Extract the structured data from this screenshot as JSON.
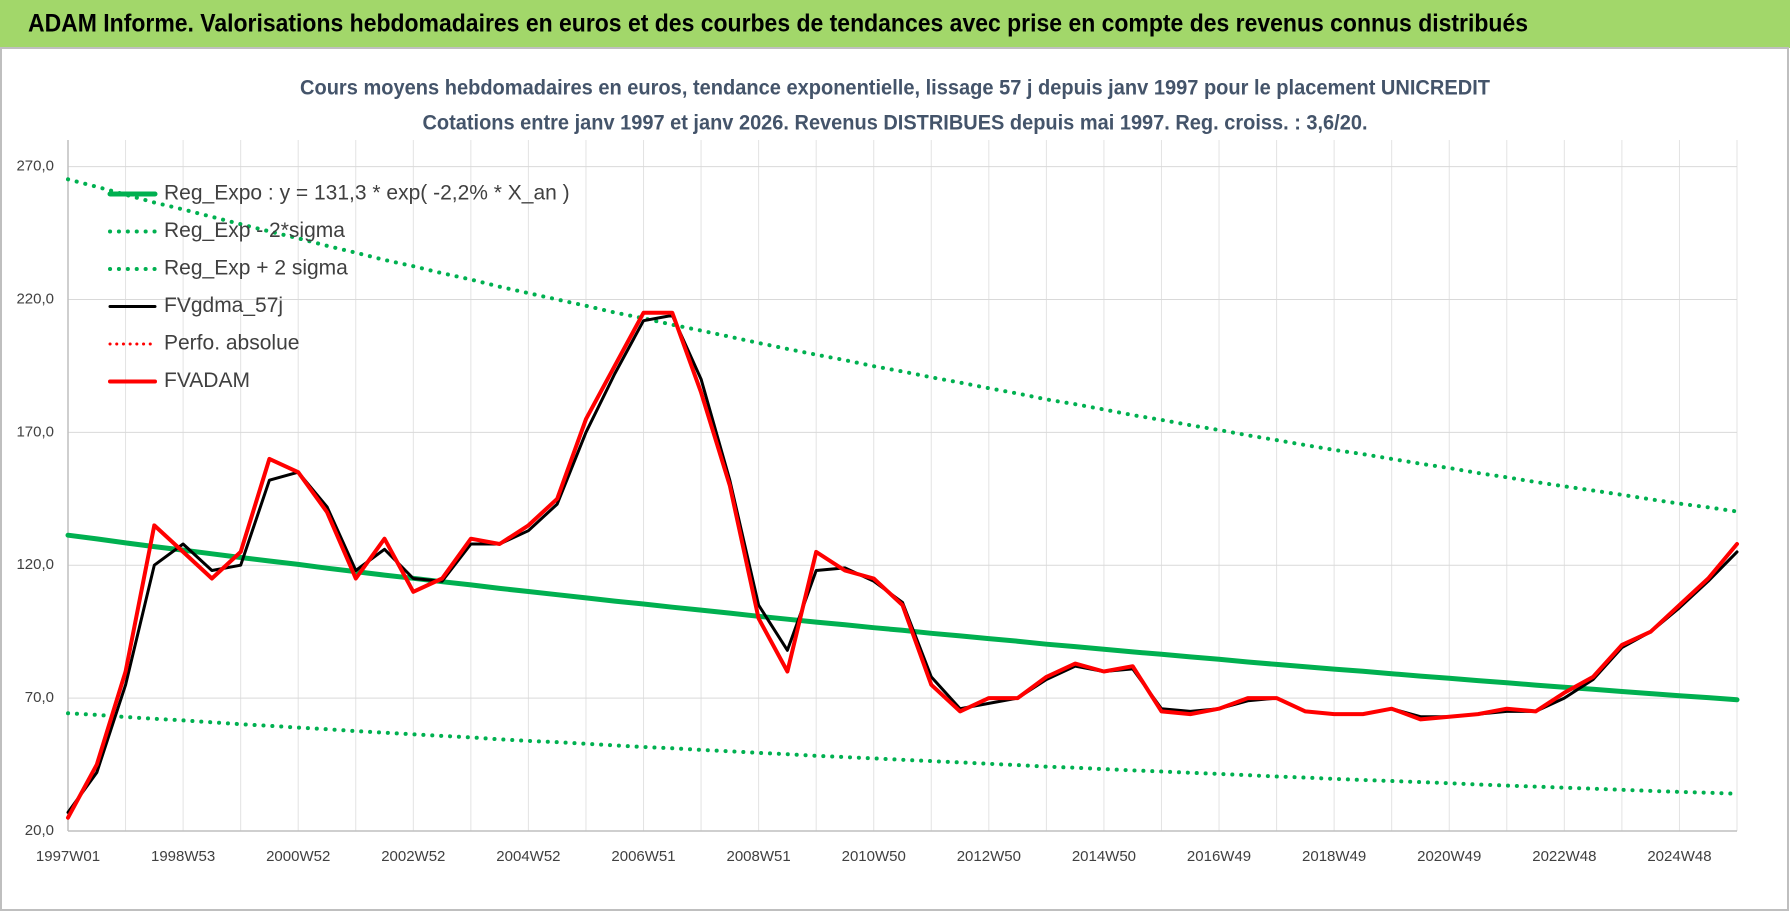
{
  "header": {
    "title": "ADAM Informe. Valorisations hebdomadaires en euros et des courbes de tendances avec prise en compte des revenus connus distribués"
  },
  "chart_data": {
    "type": "line",
    "title": "Cours moyens hebdomadaires en euros, tendance exponentielle, lissage 57 j depuis janv 1997  pour le placement UNICREDIT",
    "subtitle": "Cotations entre janv 1997 et janv 2026. Revenus DISTRIBUES depuis mai 1997. Reg. croiss. : 3,6/20.",
    "categories": [
      "1997W01",
      null,
      null,
      null,
      "1998W53",
      null,
      null,
      null,
      "2000W52",
      null,
      null,
      null,
      "2002W52",
      null,
      null,
      null,
      "2004W52",
      null,
      null,
      null,
      "2006W51",
      null,
      null,
      null,
      "2008W51",
      null,
      null,
      null,
      "2010W50",
      null,
      null,
      null,
      "2012W50",
      null,
      null,
      null,
      "2014W50",
      null,
      null,
      null,
      "2016W49",
      null,
      null,
      null,
      "2018W49",
      null,
      null,
      null,
      "2020W49",
      null,
      null,
      null,
      "2022W48",
      null,
      null,
      null,
      "2024W48",
      null,
      null
    ],
    "ylim": [
      20,
      280
    ],
    "yticks": [
      {
        "value": 20,
        "label": "20,0"
      },
      {
        "value": 70,
        "label": "70,0"
      },
      {
        "value": 120,
        "label": "120,0"
      },
      {
        "value": 170,
        "label": "170,0"
      },
      {
        "value": 220,
        "label": "220,0"
      },
      {
        "value": 270,
        "label": "270,0"
      }
    ],
    "grid": true,
    "legend": "top-left",
    "series": [
      {
        "name": "Reg_Expo : y = 131,3 * exp( -2,2% *  X_an )",
        "color": "#00b050",
        "style": "solid",
        "width": 5,
        "values": [
          131.3,
          129.9,
          128.4,
          127.0,
          125.7,
          124.3,
          122.9,
          121.6,
          120.3,
          118.9,
          117.6,
          116.3,
          115.1,
          113.8,
          112.6,
          111.3,
          110.1,
          108.9,
          107.7,
          106.5,
          105.4,
          104.2,
          103.1,
          102.0,
          100.8,
          99.7,
          98.6,
          97.6,
          96.5,
          95.5,
          94.4,
          93.4,
          92.4,
          91.4,
          90.3,
          89.4,
          88.4,
          87.4,
          86.5,
          85.5,
          84.6,
          83.6,
          82.7,
          81.8,
          80.9,
          80.1,
          79.2,
          78.3,
          77.5,
          76.6,
          75.8,
          74.9,
          74.1,
          73.3,
          72.5,
          71.7,
          70.9,
          70.2,
          69.4
        ]
      },
      {
        "name": "Reg_Exp - 2*sigma",
        "color": "#00b050",
        "style": "dotted",
        "width": 4,
        "values": [
          64.3,
          63.7,
          62.9,
          62.2,
          61.6,
          60.9,
          60.2,
          59.6,
          58.9,
          58.3,
          57.6,
          57.0,
          56.4,
          55.8,
          55.2,
          54.5,
          53.9,
          53.4,
          52.8,
          52.2,
          51.6,
          51.1,
          50.5,
          50.0,
          49.4,
          48.9,
          48.3,
          47.8,
          47.3,
          46.8,
          46.3,
          45.8,
          45.3,
          44.8,
          44.2,
          43.8,
          43.3,
          42.8,
          42.4,
          41.9,
          41.5,
          41.0,
          40.5,
          40.1,
          39.6,
          39.2,
          38.8,
          38.4,
          38.0,
          37.5,
          37.1,
          36.7,
          36.3,
          35.9,
          35.5,
          35.1,
          34.7,
          34.4,
          34.0
        ]
      },
      {
        "name": "Reg_Exp + 2 sigma",
        "color": "#00b050",
        "style": "dotted",
        "width": 4,
        "values": [
          265.2,
          262.4,
          259.4,
          256.5,
          253.9,
          251.1,
          248.3,
          245.6,
          243.0,
          240.2,
          237.6,
          234.9,
          232.5,
          229.9,
          227.5,
          224.8,
          222.4,
          220.0,
          217.6,
          215.1,
          212.9,
          210.5,
          208.3,
          206.0,
          203.6,
          201.4,
          199.2,
          197.2,
          194.9,
          192.9,
          190.7,
          188.7,
          186.6,
          184.6,
          182.4,
          180.6,
          178.6,
          176.5,
          174.7,
          172.7,
          170.9,
          168.9,
          167.1,
          165.2,
          163.4,
          161.8,
          160.0,
          158.2,
          156.6,
          154.7,
          153.1,
          151.3,
          149.7,
          148.1,
          146.5,
          144.8,
          143.2,
          141.8,
          140.2
        ]
      },
      {
        "name": "FVgdma_57j",
        "color": "#000000",
        "style": "solid",
        "width": 3,
        "values": [
          27,
          42,
          75,
          120,
          128,
          118,
          120,
          152,
          155,
          142,
          118,
          126,
          115,
          114,
          128,
          128,
          133,
          143,
          170,
          192,
          212,
          214,
          190,
          152,
          105,
          88,
          118,
          119,
          114,
          106,
          78,
          66,
          68,
          70,
          77,
          82,
          80,
          81,
          66,
          65,
          66,
          69,
          70,
          65,
          64,
          64,
          66,
          63,
          63,
          64,
          65,
          65,
          70,
          77,
          89,
          95,
          104,
          114,
          125
        ]
      },
      {
        "name": "Perfo. absolue",
        "color": "#ff0000",
        "style": "dotted",
        "width": 3,
        "values": [
          null,
          null,
          null,
          null,
          null,
          null,
          null,
          null,
          null,
          null,
          null,
          null,
          null,
          null,
          null,
          null,
          null,
          null,
          null,
          null,
          null,
          null,
          null,
          null,
          null,
          null,
          null,
          null,
          null,
          null,
          null,
          null,
          null,
          null,
          null,
          null,
          null,
          null,
          null,
          null,
          null,
          null,
          null,
          null,
          null,
          null,
          null,
          null,
          null,
          null,
          null,
          null,
          null,
          null,
          null,
          null,
          null,
          null,
          null
        ]
      },
      {
        "name": "FVADAM",
        "color": "#ff0000",
        "style": "solid",
        "width": 4,
        "values": [
          25,
          45,
          80,
          135,
          125,
          115,
          125,
          160,
          155,
          140,
          115,
          130,
          110,
          115,
          130,
          128,
          135,
          145,
          175,
          195,
          215,
          215,
          185,
          150,
          100,
          80,
          125,
          118,
          115,
          105,
          75,
          65,
          70,
          70,
          78,
          83,
          80,
          82,
          65,
          64,
          66,
          70,
          70,
          65,
          64,
          64,
          66,
          62,
          63,
          64,
          66,
          65,
          72,
          78,
          90,
          95,
          105,
          115,
          128
        ]
      }
    ]
  }
}
